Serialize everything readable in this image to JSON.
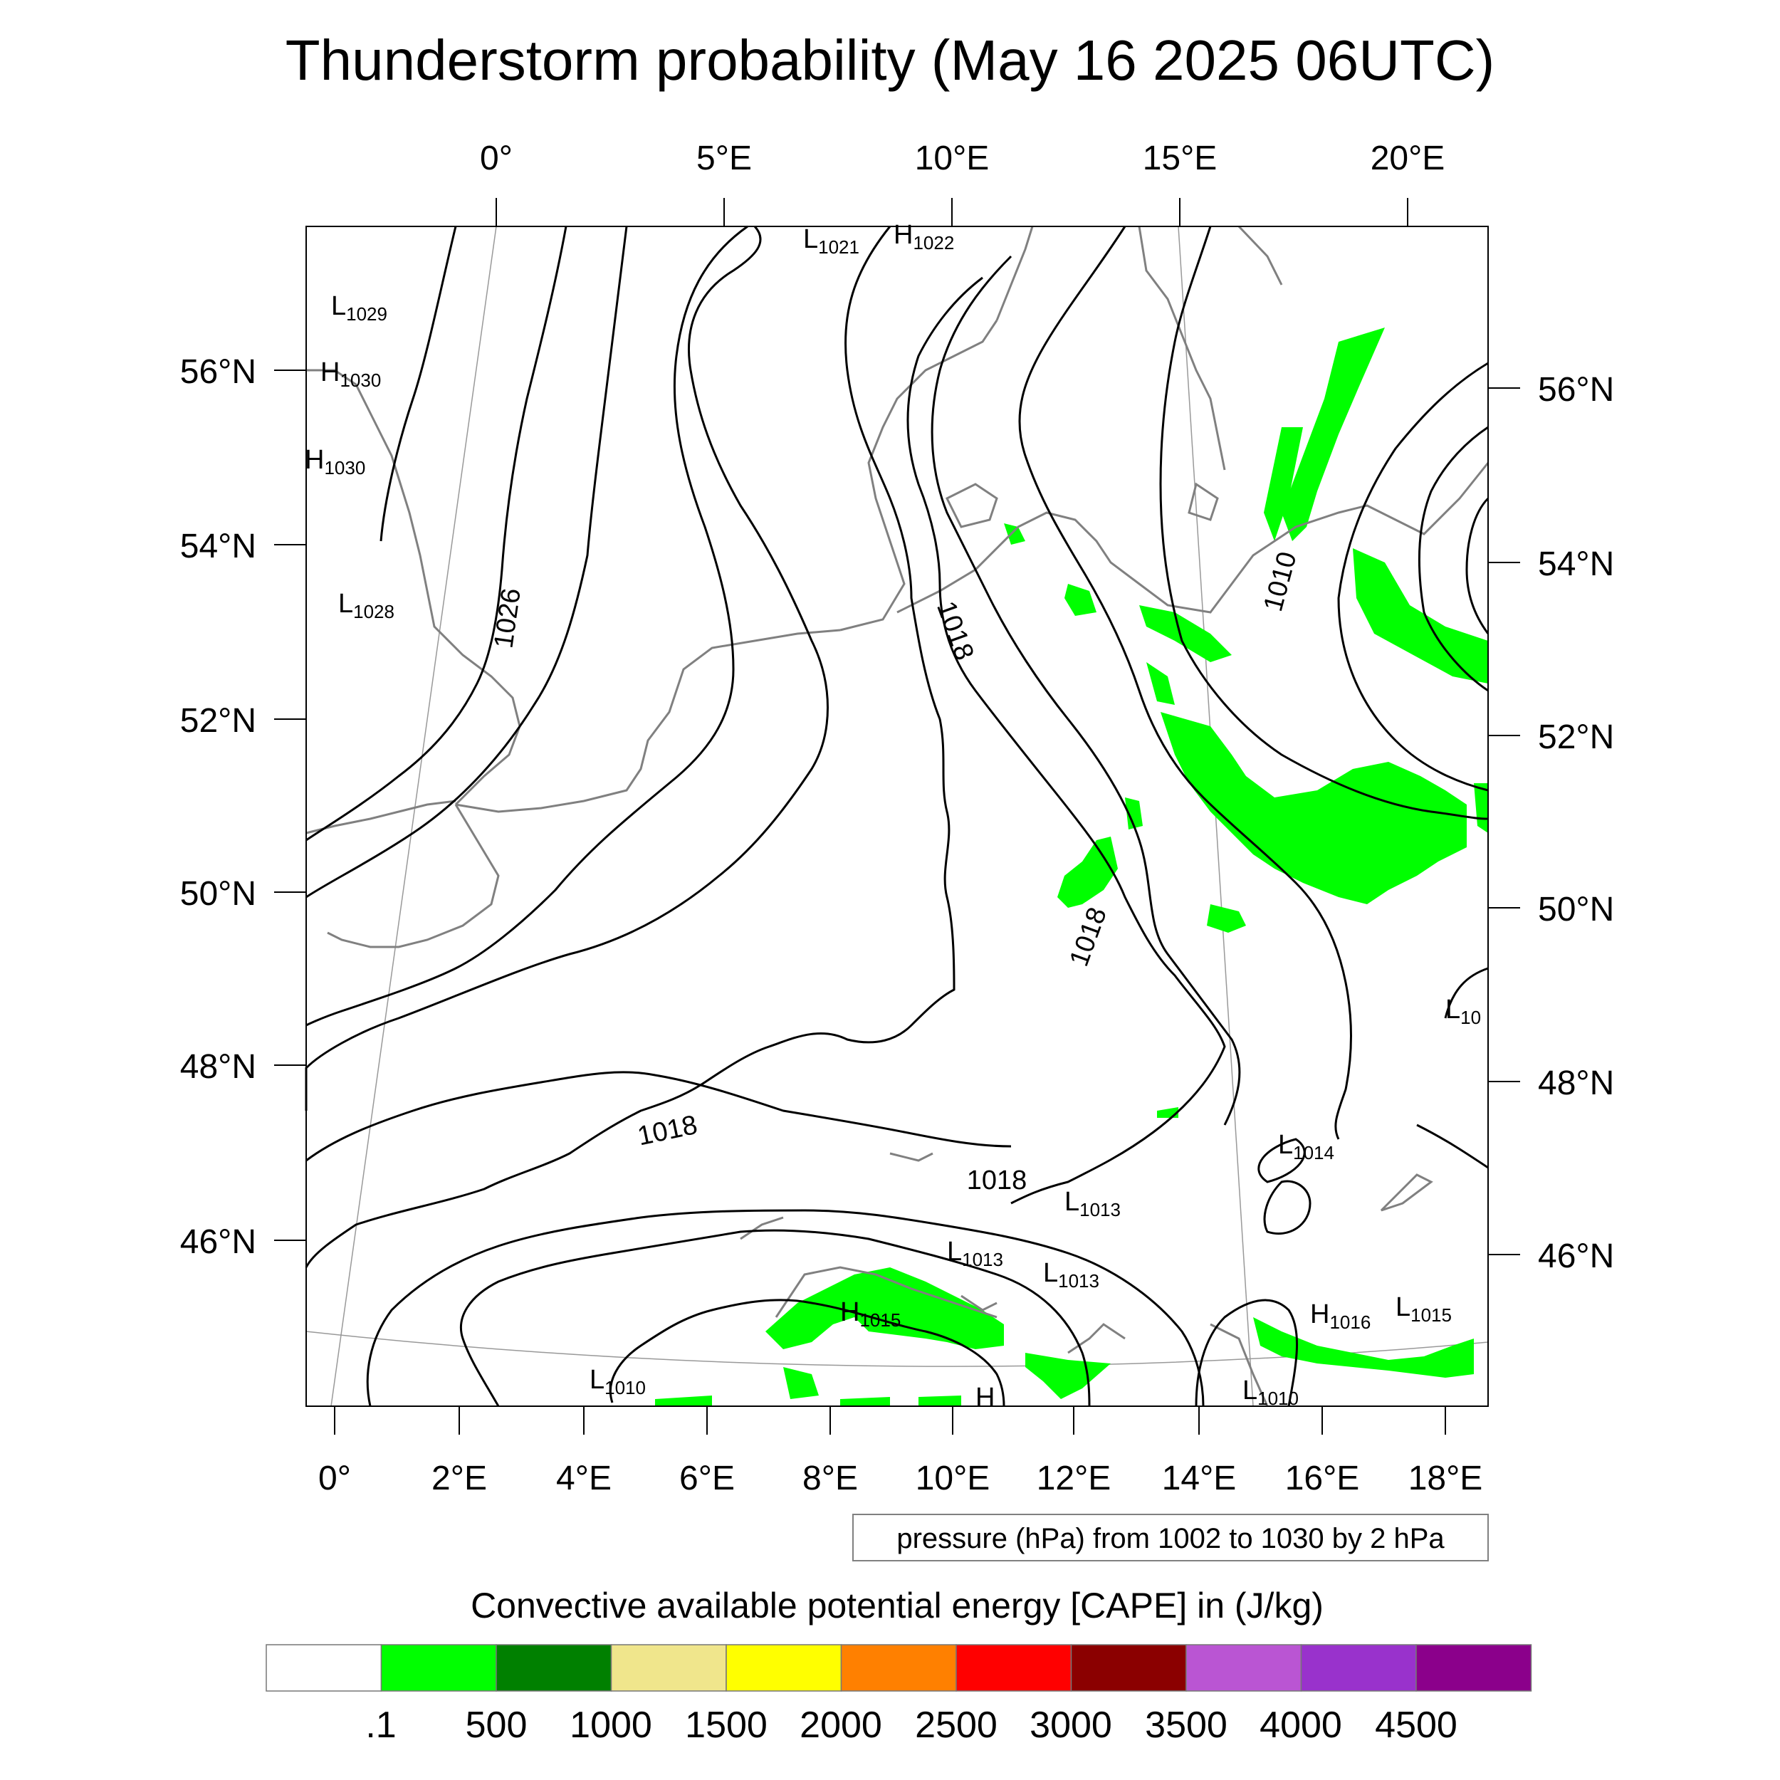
{
  "title": "Thunderstorm probability (May 16 2025 06UTC)",
  "top_lon_labels": [
    "0°",
    "5°E",
    "10°E",
    "15°E",
    "20°E"
  ],
  "bottom_lon_labels": [
    "0°",
    "2°E",
    "4°E",
    "6°E",
    "8°E",
    "10°E",
    "12°E",
    "14°E",
    "16°E",
    "18°E"
  ],
  "left_lat_labels": [
    "56°N",
    "54°N",
    "52°N",
    "50°N",
    "48°N",
    "46°N"
  ],
  "right_lat_labels": [
    "56°N",
    "54°N",
    "52°N",
    "50°N",
    "48°N",
    "46°N"
  ],
  "isobar_labels": [
    "1026",
    "1018",
    "1018",
    "1018",
    "1018",
    "1010"
  ],
  "pressure_centers": [
    {
      "type": "L",
      "value": "1021"
    },
    {
      "type": "H",
      "value": "1022"
    },
    {
      "type": "L",
      "value": "1029"
    },
    {
      "type": "H",
      "value": "1030"
    },
    {
      "type": "H",
      "value": "1030"
    },
    {
      "type": "L",
      "value": "1028"
    },
    {
      "type": "L",
      "value": "1014"
    },
    {
      "type": "L",
      "value": "1013"
    },
    {
      "type": "L",
      "value": "1013"
    },
    {
      "type": "L",
      "value": "1013"
    },
    {
      "type": "H",
      "value": "1015"
    },
    {
      "type": "H",
      "value": "1016"
    },
    {
      "type": "L",
      "value": "1015"
    },
    {
      "type": "L",
      "value": "1010"
    },
    {
      "type": "L",
      "value": "1010"
    },
    {
      "type": "L",
      "value": "10"
    },
    {
      "type": "H",
      "value": ""
    }
  ],
  "contour_info": "pressure (hPa) from 1002 to 1030 by 2 hPa",
  "colorbar": {
    "title": "Convective available potential energy [CAPE] in (J/kg)",
    "colors": [
      "#ffffff",
      "#00ff00",
      "#008000",
      "#f0e68c",
      "#ffff00",
      "#ff8000",
      "#ff0000",
      "#8b0000",
      "#ba55d3",
      "#9932cc",
      "#8b008b"
    ],
    "tick_labels": [
      ".1",
      "500",
      "1000",
      "1500",
      "2000",
      "2500",
      "3000",
      "3500",
      "4000",
      "4500"
    ]
  },
  "colors": {
    "cape_shading": "#00ff00",
    "isobar": "#000000",
    "coastline": "#808080"
  }
}
